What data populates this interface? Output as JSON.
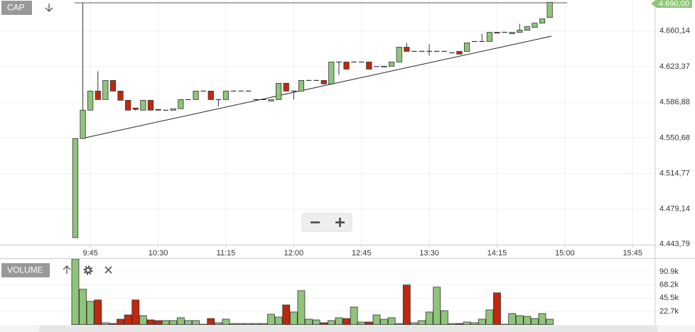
{
  "chart_data": {
    "type": "candlestick",
    "title": "CAP",
    "volume_title": "VOLUME",
    "x": [
      "9:35",
      "9:40",
      "9:45",
      "9:50",
      "9:55",
      "10:00",
      "10:05",
      "10:10",
      "10:15",
      "10:20",
      "10:25",
      "10:30",
      "10:35",
      "10:40",
      "10:45",
      "10:50",
      "10:55",
      "11:00",
      "11:05",
      "11:10",
      "11:15",
      "11:20",
      "11:25",
      "11:30",
      "11:35",
      "11:40",
      "11:45",
      "11:50",
      "11:55",
      "12:00",
      "12:05",
      "12:10",
      "12:15",
      "12:20",
      "12:25",
      "12:30",
      "12:35",
      "12:40",
      "12:45",
      "12:50",
      "12:55",
      "13:00",
      "13:05",
      "13:10",
      "13:15",
      "13:20",
      "13:25",
      "13:30",
      "13:35",
      "13:40",
      "13:45",
      "13:50",
      "13:55",
      "14:00",
      "14:05",
      "14:10",
      "14:15",
      "14:20",
      "14:25",
      "14:30",
      "14:35",
      "14:40",
      "14:45",
      "14:50"
    ],
    "open": [
      4450.8,
      4550.0,
      4578.8,
      4598.3,
      4589.6,
      4609.2,
      4598.3,
      4588.9,
      4581.0,
      4578.8,
      4588.9,
      4579.6,
      4578.8,
      4578.8,
      4580.3,
      4589.6,
      4589.6,
      4598.3,
      4598.3,
      4589.6,
      4589.6,
      4598.3,
      4598.3,
      4598.3,
      4589.6,
      4589.6,
      4588.2,
      4589.6,
      4606.3,
      4598.3,
      4598.3,
      4609.2,
      4609.2,
      4609.2,
      4605.6,
      4628.1,
      4628.1,
      4628.1,
      4628.1,
      4628.1,
      4623.4,
      4623.4,
      4623.8,
      4628.1,
      4643.4,
      4639.1,
      4639.1,
      4639.1,
      4639.1,
      4639.1,
      4637.6,
      4639.1,
      4639.1,
      4649.3,
      4649.3,
      4649.3,
      4658.8,
      4658.8,
      4657.3,
      4658.8,
      4661.0,
      4664.0,
      4668.3,
      4674.2
    ],
    "high": [
      4550.0,
      4689.0,
      4598.3,
      4618.6,
      4609.2,
      4609.2,
      4598.3,
      4588.9,
      4581.0,
      4588.9,
      4588.9,
      4579.6,
      4578.8,
      4580.3,
      4589.6,
      4589.6,
      4598.3,
      4598.3,
      4598.3,
      4589.6,
      4598.3,
      4598.3,
      4598.3,
      4598.3,
      4589.6,
      4589.6,
      4589.6,
      4606.3,
      4606.3,
      4598.3,
      4609.2,
      4609.2,
      4609.2,
      4609.2,
      4628.1,
      4628.1,
      4628.1,
      4628.1,
      4628.1,
      4628.1,
      4623.4,
      4623.8,
      4628.1,
      4643.4,
      4647.9,
      4639.1,
      4639.1,
      4646.4,
      4639.1,
      4639.1,
      4637.6,
      4639.1,
      4647.9,
      4649.3,
      4657.3,
      4658.8,
      4658.8,
      4658.8,
      4658.8,
      4667.6,
      4664.7,
      4668.3,
      4672.8,
      4690.0
    ],
    "low": [
      4450.8,
      4550.0,
      4578.8,
      4589.6,
      4589.6,
      4598.3,
      4588.9,
      4578.8,
      4578.1,
      4578.8,
      4578.8,
      4578.8,
      4578.8,
      4578.8,
      4580.3,
      4589.6,
      4589.6,
      4598.3,
      4589.6,
      4582.4,
      4589.6,
      4598.3,
      4598.3,
      4598.3,
      4589.6,
      4589.6,
      4588.2,
      4589.6,
      4598.3,
      4589.6,
      4598.3,
      4609.2,
      4609.2,
      4605.6,
      4605.6,
      4615.0,
      4620.8,
      4628.1,
      4628.1,
      4620.8,
      4623.4,
      4623.4,
      4623.8,
      4628.1,
      4639.1,
      4639.1,
      4639.1,
      4634.7,
      4639.1,
      4639.1,
      4637.6,
      4636.2,
      4639.1,
      4649.3,
      4649.3,
      4649.3,
      4658.0,
      4658.8,
      4657.3,
      4658.8,
      4661.0,
      4664.0,
      4668.3,
      4674.2
    ],
    "close": [
      4550.0,
      4578.8,
      4598.3,
      4589.6,
      4609.2,
      4598.3,
      4588.9,
      4578.8,
      4579.6,
      4588.9,
      4578.8,
      4578.8,
      4578.8,
      4580.3,
      4589.6,
      4589.6,
      4598.3,
      4598.3,
      4589.6,
      4589.6,
      4598.3,
      4598.3,
      4598.3,
      4598.3,
      4589.6,
      4589.6,
      4589.6,
      4606.3,
      4598.3,
      4598.3,
      4609.2,
      4609.2,
      4609.2,
      4605.6,
      4628.1,
      4628.1,
      4620.8,
      4628.1,
      4628.1,
      4620.8,
      4623.4,
      4623.8,
      4628.1,
      4643.4,
      4639.1,
      4639.1,
      4639.1,
      4639.1,
      4639.1,
      4639.1,
      4637.6,
      4636.2,
      4647.9,
      4649.3,
      4649.3,
      4658.8,
      4658.0,
      4658.8,
      4658.8,
      4661.0,
      4664.7,
      4668.3,
      4672.8,
      4690.0
    ],
    "last_close_label": "4.690,00",
    "volume": [
      113000,
      60800,
      39900,
      42400,
      3100,
      1800,
      9200,
      16600,
      42400,
      15400,
      8000,
      6800,
      6800,
      6800,
      11700,
      6800,
      6800,
      600,
      10400,
      3100,
      9200,
      1800,
      1800,
      1800,
      1800,
      1800,
      17800,
      12900,
      33800,
      21500,
      58300,
      9200,
      8000,
      3100,
      6800,
      11700,
      10400,
      30100,
      4300,
      4300,
      16600,
      9200,
      11700,
      1800,
      68200,
      3100,
      6800,
      21500,
      64500,
      23900,
      1800,
      1800,
      4300,
      3100,
      9200,
      25200,
      54600,
      600,
      19000,
      15400,
      14100,
      10400,
      19000,
      9200
    ],
    "up_color": "#8fc47a",
    "down_color": "#c1270f",
    "log_scale": true,
    "grid": true,
    "xlim": [
      "8:45",
      "16:00"
    ],
    "xticks": [
      "9:45",
      "10:30",
      "11:15",
      "12:00",
      "12:45",
      "13:30",
      "14:15",
      "15:00",
      "15:45"
    ],
    "ylim": [
      4443.79,
      4692.4
    ],
    "yticks": [
      {
        "value": 4443.79,
        "label": "4.443,79"
      },
      {
        "value": 4479.14,
        "label": "4.479,14"
      },
      {
        "value": 4514.77,
        "label": "4.514,77"
      },
      {
        "value": 4550.68,
        "label": "4.550,68"
      },
      {
        "value": 4586.88,
        "label": "4.586,88"
      },
      {
        "value": 4623.37,
        "label": "4.623,37"
      },
      {
        "value": 4660.14,
        "label": "4.660,14"
      }
    ],
    "volume_ylim": [
      0,
      113000
    ],
    "volume_yticks": [
      {
        "value": 22700,
        "label": "22.7k"
      },
      {
        "value": 45500,
        "label": "45.5k"
      },
      {
        "value": 68200,
        "label": "68.2k"
      },
      {
        "value": 90900,
        "label": "90.9k"
      }
    ]
  }
}
